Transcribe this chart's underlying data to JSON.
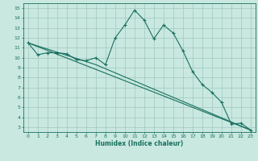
{
  "title": "",
  "xlabel": "Humidex (Indice chaleur)",
  "bg_color": "#c8e8e0",
  "grid_color": "#a0c8c0",
  "line_color": "#1a7060",
  "xlim": [
    -0.5,
    23.5
  ],
  "ylim": [
    2.5,
    15.5
  ],
  "xticks": [
    0,
    1,
    2,
    3,
    4,
    5,
    6,
    7,
    8,
    9,
    10,
    11,
    12,
    13,
    14,
    15,
    16,
    17,
    18,
    19,
    20,
    21,
    22,
    23
  ],
  "yticks": [
    3,
    4,
    5,
    6,
    7,
    8,
    9,
    10,
    11,
    12,
    13,
    14,
    15
  ],
  "series1_x": [
    0,
    1,
    2,
    3,
    4,
    5,
    6,
    7,
    8,
    9,
    10,
    11,
    12,
    13,
    14,
    15,
    16,
    17,
    18,
    19,
    20,
    21,
    22,
    23
  ],
  "series1_y": [
    11.5,
    10.3,
    10.5,
    10.5,
    10.4,
    9.8,
    9.7,
    10.0,
    9.3,
    12.0,
    13.3,
    14.8,
    13.8,
    11.9,
    13.3,
    12.5,
    10.7,
    8.6,
    7.3,
    6.5,
    5.5,
    3.3,
    3.4,
    2.7
  ],
  "series2_x": [
    0,
    7,
    23
  ],
  "series2_y": [
    11.5,
    9.3,
    2.7
  ],
  "series3_x": [
    0,
    23
  ],
  "series3_y": [
    11.5,
    2.7
  ]
}
